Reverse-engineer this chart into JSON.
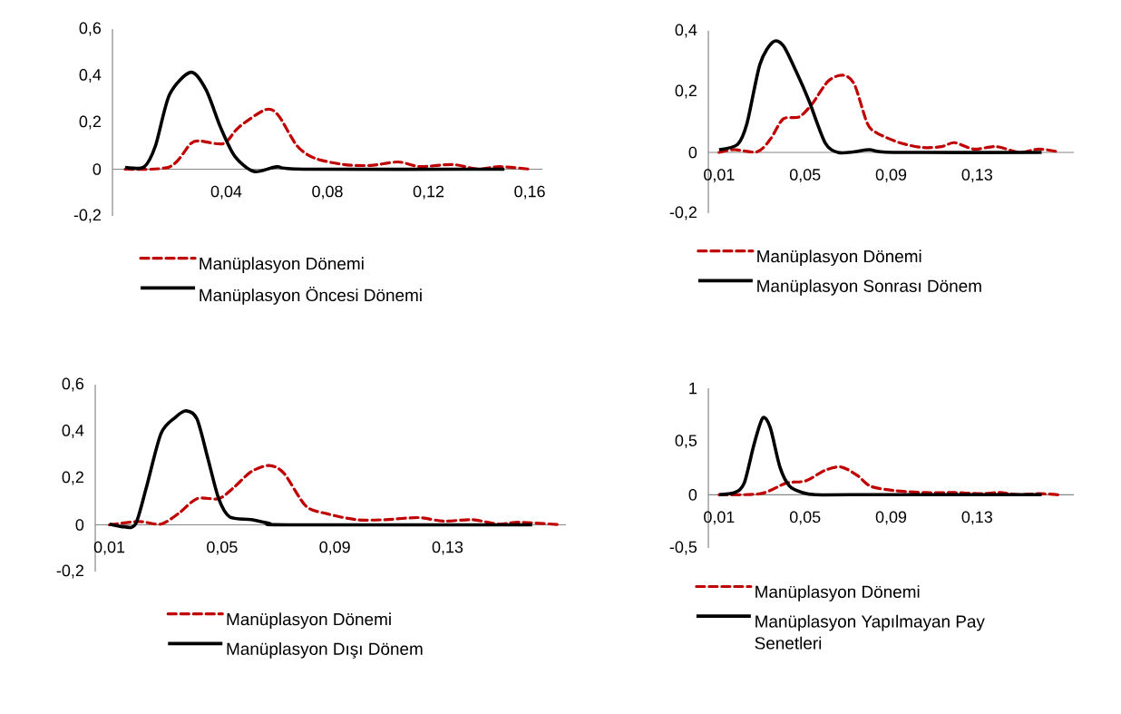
{
  "chart_data": [
    {
      "type": "line",
      "xlim": [
        -0.005,
        0.165
      ],
      "ylim": [
        -0.2,
        0.6
      ],
      "legend": "bottom",
      "xticks": [
        {
          "value": 0.04,
          "label": "0,04"
        },
        {
          "value": 0.08,
          "label": "0,08"
        },
        {
          "value": 0.12,
          "label": "0,12"
        },
        {
          "value": 0.16,
          "label": "0,16"
        }
      ],
      "yticks": [
        {
          "value": -0.2,
          "label": "-0,2"
        },
        {
          "value": 0,
          "label": "0"
        },
        {
          "value": 0.2,
          "label": "0,2"
        },
        {
          "value": 0.4,
          "label": "0,4"
        },
        {
          "value": 0.6,
          "label": "0,6"
        }
      ],
      "series": [
        {
          "name": "Manüplasyon Dönemi",
          "color": "#c00000",
          "line_style": "dashed",
          "x": [
            0,
            0.0176,
            0.026,
            0.03,
            0.039,
            0.045,
            0.0556,
            0.0606,
            0.068,
            0.075,
            0.0865,
            0.097,
            0.108,
            0.1166,
            0.1295,
            0.1396,
            0.148,
            0.16
          ],
          "values": [
            0,
            0.01,
            0.11,
            0.12,
            0.11,
            0.18,
            0.255,
            0.23,
            0.1,
            0.047,
            0.02,
            0.016,
            0.031,
            0.011,
            0.02,
            0,
            0.011,
            0
          ]
        },
        {
          "name": "Manüplasyon Öncesi Dönemi",
          "color": "#000000",
          "line_style": "solid",
          "x": [
            0,
            0.0075,
            0.012,
            0.0176,
            0.026,
            0.032,
            0.0377,
            0.0434,
            0.051,
            0.06,
            0.0707,
            0.15
          ],
          "values": [
            0.008,
            0.01,
            0.1,
            0.32,
            0.415,
            0.34,
            0.18,
            0.055,
            -0.01,
            0.01,
            0,
            0
          ]
        }
      ]
    },
    {
      "type": "line",
      "xlim": [
        0.005,
        0.175
      ],
      "ylim": [
        -0.2,
        0.4
      ],
      "legend": "bottom",
      "xticks": [
        {
          "value": 0.01,
          "label": "0,01"
        },
        {
          "value": 0.05,
          "label": "0,05"
        },
        {
          "value": 0.09,
          "label": "0,09"
        },
        {
          "value": 0.13,
          "label": "0,13"
        }
      ],
      "yticks": [
        {
          "value": -0.2,
          "label": "-0,2"
        },
        {
          "value": 0,
          "label": "0"
        },
        {
          "value": 0.2,
          "label": "0,2"
        },
        {
          "value": 0.4,
          "label": "0,4"
        }
      ],
      "series": [
        {
          "name": "Manüplasyon Dönemi",
          "color": "#c00000",
          "line_style": "dashed",
          "x": [
            0.01,
            0.017,
            0.0277,
            0.0338,
            0.0398,
            0.0473,
            0.0533,
            0.0608,
            0.0676,
            0.0729,
            0.0789,
            0.0834,
            0.0939,
            0.1045,
            0.1135,
            0.1195,
            0.1285,
            0.139,
            0.1496,
            0.1586,
            0.167
          ],
          "values": [
            0,
            0.009,
            0.002,
            0.043,
            0.11,
            0.117,
            0.16,
            0.235,
            0.254,
            0.224,
            0.096,
            0.064,
            0.032,
            0.016,
            0.019,
            0.032,
            0.011,
            0.019,
            0,
            0.011,
            0.003
          ]
        },
        {
          "name": "Manüplasyon Sonrası Dönem",
          "color": "#000000",
          "line_style": "solid",
          "x": [
            0.01,
            0.0187,
            0.023,
            0.029,
            0.035,
            0.0398,
            0.0458,
            0.0518,
            0.0593,
            0.0653,
            0.073,
            0.08,
            0.091,
            0.16
          ],
          "values": [
            0.009,
            0.027,
            0.096,
            0.29,
            0.363,
            0.352,
            0.267,
            0.17,
            0.032,
            0,
            0.002,
            0.009,
            0,
            0
          ]
        }
      ]
    },
    {
      "type": "line",
      "xlim": [
        0.005,
        0.172
      ],
      "ylim": [
        -0.2,
        0.6
      ],
      "legend": "bottom",
      "xticks": [
        {
          "value": 0.01,
          "label": "0,01"
        },
        {
          "value": 0.05,
          "label": "0,05"
        },
        {
          "value": 0.09,
          "label": "0,09"
        },
        {
          "value": 0.13,
          "label": "0,13"
        }
      ],
      "yticks": [
        {
          "value": -0.2,
          "label": "-0,2"
        },
        {
          "value": 0,
          "label": "0"
        },
        {
          "value": 0.2,
          "label": "0,2"
        },
        {
          "value": 0.4,
          "label": "0,4"
        },
        {
          "value": 0.6,
          "label": "0,6"
        }
      ],
      "series": [
        {
          "name": "Manüplasyon Dönemi",
          "color": "#c00000",
          "line_style": "dashed",
          "x": [
            0.01,
            0.0205,
            0.0283,
            0.0347,
            0.0411,
            0.0488,
            0.054,
            0.0604,
            0.0668,
            0.072,
            0.0797,
            0.0874,
            0.0977,
            0.108,
            0.1196,
            0.1286,
            0.1389,
            0.1479,
            0.1556,
            0.1704
          ],
          "values": [
            0,
            0.014,
            0.003,
            0.05,
            0.112,
            0.112,
            0.158,
            0.228,
            0.254,
            0.22,
            0.081,
            0.047,
            0.022,
            0.022,
            0.031,
            0.016,
            0.022,
            0.003,
            0.011,
            0
          ]
        },
        {
          "name": "Manüplasyon Dışı Dönem",
          "color": "#000000",
          "line_style": "solid",
          "x": [
            0.01,
            0.0154,
            0.0193,
            0.0231,
            0.0283,
            0.0334,
            0.0373,
            0.0411,
            0.045,
            0.0488,
            0.0527,
            0.0604,
            0.0668,
            0.0733,
            0.16
          ],
          "values": [
            0.003,
            -0.009,
            0.003,
            0.158,
            0.39,
            0.46,
            0.488,
            0.453,
            0.282,
            0.112,
            0.034,
            0.022,
            0.006,
            0,
            0
          ]
        }
      ]
    },
    {
      "type": "line",
      "xlim": [
        0.005,
        0.175
      ],
      "ylim": [
        -0.5,
        1
      ],
      "legend": "bottom",
      "xticks": [
        {
          "value": 0.01,
          "label": "0,01"
        },
        {
          "value": 0.05,
          "label": "0,05"
        },
        {
          "value": 0.09,
          "label": "0,09"
        },
        {
          "value": 0.13,
          "label": "0,13"
        }
      ],
      "yticks": [
        {
          "value": -0.5,
          "label": "-0,5"
        },
        {
          "value": 0,
          "label": "0"
        },
        {
          "value": 0.5,
          "label": "0,5"
        },
        {
          "value": 1,
          "label": "1"
        }
      ],
      "series": [
        {
          "name": "Manüplasyon Dönemi",
          "color": "#c00000",
          "line_style": "dashed",
          "x": [
            0.01,
            0.0293,
            0.0413,
            0.0503,
            0.0593,
            0.0669,
            0.0744,
            0.0804,
            0.091,
            0.106,
            0.1195,
            0.1315,
            0.1405,
            0.1496,
            0.159,
            0.1676
          ],
          "values": [
            0,
            0.01,
            0.11,
            0.13,
            0.23,
            0.26,
            0.18,
            0.08,
            0.04,
            0.02,
            0.02,
            0.01,
            0.02,
            0,
            0.01,
            0
          ]
        },
        {
          "name": "Manüplasyon Yapılmayan Pay Senetleri",
          "color": "#000000",
          "line_style": "solid",
          "x": [
            0.01,
            0.0172,
            0.0217,
            0.0262,
            0.0303,
            0.0338,
            0.0383,
            0.0428,
            0.0488,
            0.0548,
            0.0714,
            0.16
          ],
          "values": [
            0,
            0.02,
            0.11,
            0.47,
            0.72,
            0.63,
            0.26,
            0.08,
            0.02,
            0,
            0,
            0
          ]
        }
      ]
    }
  ]
}
